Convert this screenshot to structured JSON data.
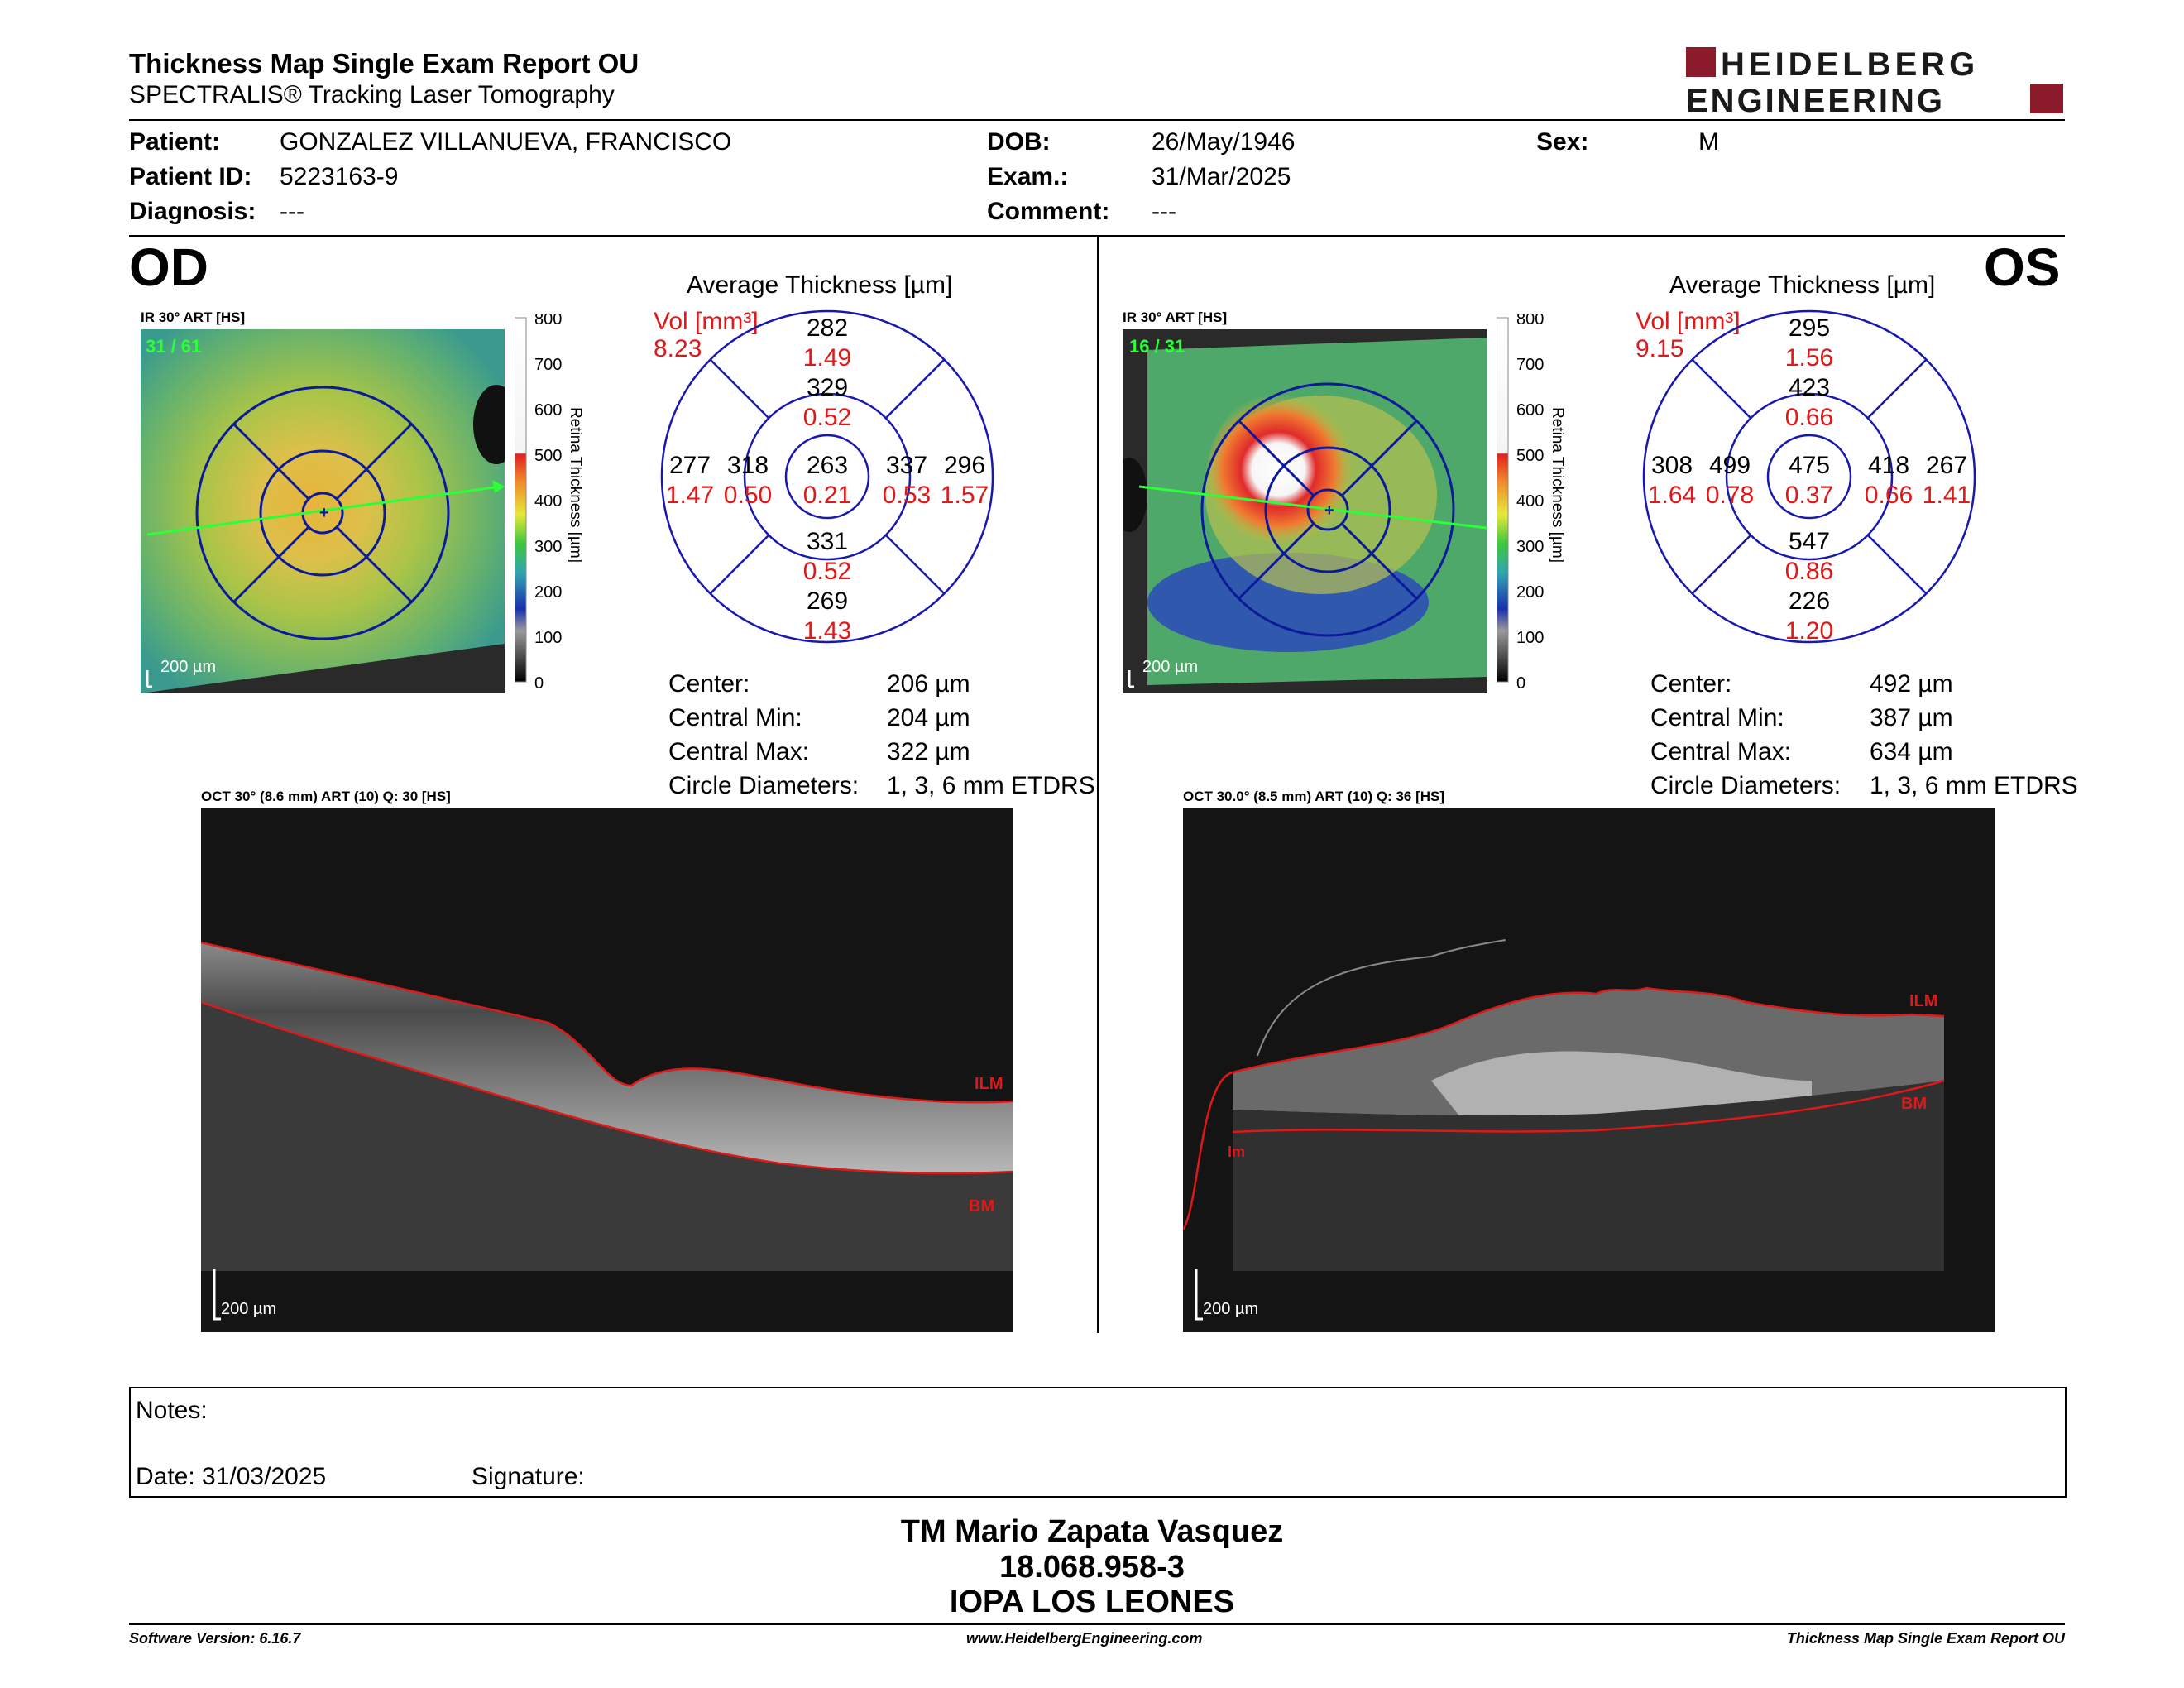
{
  "header": {
    "title": "Thickness Map Single Exam Report OU",
    "subtitle": "SPECTRALIS® Tracking Laser Tomography",
    "brand_line1": "HEIDELBERG",
    "brand_line2": "ENGINEERING",
    "brand_color": "#8b1a2b"
  },
  "patient": {
    "patient_label": "Patient:",
    "patient_value": "GONZALEZ VILLANUEVA, FRANCISCO",
    "id_label": "Patient ID:",
    "id_value": "5223163-9",
    "diag_label": "Diagnosis:",
    "diag_value": "---",
    "dob_label": "DOB:",
    "dob_value": "26/May/1946",
    "exam_label": "Exam.:",
    "exam_value": "31/Mar/2025",
    "comment_label": "Comment:",
    "comment_value": "---",
    "sex_label": "Sex:",
    "sex_value": "M"
  },
  "od": {
    "eye": "OD",
    "ir_label": "IR 30° ART [HS]",
    "frames": "31 / 61",
    "scale_label": "200 µm",
    "colorbar_ticks": [
      "800",
      "700",
      "600",
      "500",
      "400",
      "300",
      "200",
      "100",
      "0"
    ],
    "colorbar_title": "Retina Thickness [µm]",
    "avg_title": "Average Thickness [µm]",
    "vol_label": "Vol [mm³]",
    "vol_total": "8.23",
    "sectors": {
      "outer_top": "282",
      "outer_top_vol": "1.49",
      "inner_top": "329",
      "inner_top_vol": "0.52",
      "outer_left": "277",
      "outer_left_vol": "1.47",
      "inner_left": "318",
      "inner_left_vol": "0.50",
      "center": "263",
      "center_vol": "0.21",
      "inner_right": "337",
      "inner_right_vol": "0.53",
      "outer_right": "296",
      "outer_right_vol": "1.57",
      "inner_bottom": "331",
      "inner_bottom_vol": "0.52",
      "outer_bottom": "269",
      "outer_bottom_vol": "1.43"
    },
    "stats": [
      {
        "label": "Center:",
        "value": "206 µm"
      },
      {
        "label": "Central Min:",
        "value": "204 µm"
      },
      {
        "label": "Central Max:",
        "value": "322 µm"
      },
      {
        "label": "Circle Diameters:",
        "value": "1, 3, 6 mm ETDRS"
      }
    ],
    "oct_label": "OCT 30° (8.6 mm) ART (10) Q: 30 [HS]",
    "oct_ilm": "ILM",
    "oct_bm": "BM",
    "oct_scale": "200 µm"
  },
  "os": {
    "eye": "OS",
    "ir_label": "IR 30° ART [HS]",
    "frames": "16 / 31",
    "scale_label": "200 µm",
    "colorbar_ticks": [
      "800",
      "700",
      "600",
      "500",
      "400",
      "300",
      "200",
      "100",
      "0"
    ],
    "colorbar_title": "Retina Thickness [µm]",
    "avg_title": "Average Thickness [µm]",
    "vol_label": "Vol [mm³]",
    "vol_total": "9.15",
    "sectors": {
      "outer_top": "295",
      "outer_top_vol": "1.56",
      "inner_top": "423",
      "inner_top_vol": "0.66",
      "outer_left": "308",
      "outer_left_vol": "1.64",
      "inner_left": "499",
      "inner_left_vol": "0.78",
      "center": "475",
      "center_vol": "0.37",
      "inner_right": "418",
      "inner_right_vol": "0.66",
      "outer_right": "267",
      "outer_right_vol": "1.41",
      "inner_bottom": "547",
      "inner_bottom_vol": "0.86",
      "outer_bottom": "226",
      "outer_bottom_vol": "1.20"
    },
    "stats": [
      {
        "label": "Center:",
        "value": "492 µm"
      },
      {
        "label": "Central Min:",
        "value": "387 µm"
      },
      {
        "label": "Central Max:",
        "value": "634 µm"
      },
      {
        "label": "Circle Diameters:",
        "value": "1, 3, 6 mm ETDRS"
      }
    ],
    "oct_label": "OCT 30.0° (8.5 mm) ART (10) Q: 36 [HS]",
    "oct_ilm": "ILM",
    "oct_bm": "BM",
    "oct_im": "Im",
    "oct_scale": "200 µm"
  },
  "notes": {
    "notes_label": "Notes:",
    "date_label": "Date: 31/03/2025",
    "signature_label": "Signature:"
  },
  "signer": {
    "name": "TM Mario Zapata Vasquez",
    "id": "18.068.958-3",
    "institution": "IOPA LOS LEONES"
  },
  "footer": {
    "software": "Software Version: 6.16.7",
    "website": "www.HeidelbergEngineering.com",
    "report": "Thickness Map Single Exam Report OU"
  }
}
